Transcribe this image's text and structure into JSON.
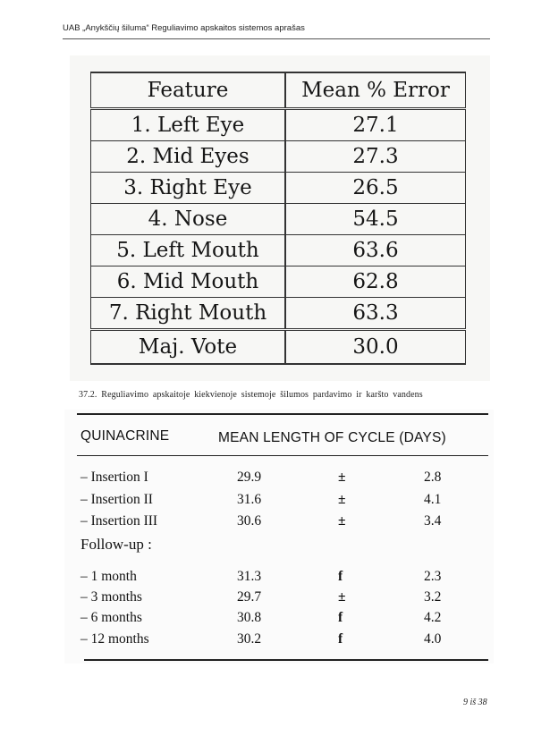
{
  "header": {
    "title": "UAB „Anykščių šiluma“ Reguliavimo apskaitos sistemos aprašas"
  },
  "table1": {
    "headers": [
      "Feature",
      "Mean % Error"
    ],
    "rows": [
      [
        "1. Left Eye",
        "27.1"
      ],
      [
        "2. Mid Eyes",
        "27.3"
      ],
      [
        "3. Right Eye",
        "26.5"
      ],
      [
        "4. Nose",
        "54.5"
      ],
      [
        "5. Left Mouth",
        "63.6"
      ],
      [
        "6. Mid Mouth",
        "62.8"
      ],
      [
        "7. Right Mouth",
        "63.3"
      ]
    ],
    "summary": [
      "Maj. Vote",
      "30.0"
    ]
  },
  "paragraph": "37.2. Reguliavimo apskaitoje kiekvienoje sistemoje šilumos pardavimo ir karšto vandens",
  "table2": {
    "header_left": "QUINACRINE",
    "header_right": "MEAN LENGTH OF CYCLE (DAYS)",
    "group1": [
      [
        "– Insertion I",
        "29.9",
        "±",
        "2.8"
      ],
      [
        "– Insertion II",
        "31.6",
        "±",
        "4.1"
      ],
      [
        "– Insertion III",
        "30.6",
        "±",
        "3.4"
      ]
    ],
    "followup_label": "Follow-up :",
    "group2": [
      [
        "– 1 month",
        "31.3",
        "f",
        "2.3"
      ],
      [
        "– 3 months",
        "29.7",
        "±",
        "3.2"
      ],
      [
        "– 6 months",
        "30.8",
        "f",
        "4.2"
      ],
      [
        "– 12 months",
        "30.2",
        "f",
        "4.0"
      ]
    ]
  },
  "page_number": "9 iš 38"
}
